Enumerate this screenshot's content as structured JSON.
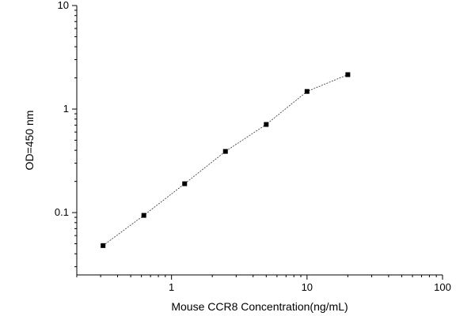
{
  "chart_data": {
    "type": "scatter",
    "xlabel": "Mouse CCR8 Concentration(ng/mL)",
    "ylabel": "OD=450 nm",
    "xscale": "log",
    "yscale": "log",
    "xlim": [
      0.2,
      100
    ],
    "ylim": [
      0.025,
      10
    ],
    "x_ticks": [
      1,
      10,
      100
    ],
    "x_tick_labels": [
      "1",
      "10",
      "100"
    ],
    "y_ticks": [
      0.1,
      1,
      10
    ],
    "y_tick_labels": [
      "0.1",
      "1",
      "10"
    ],
    "grid": false,
    "series": [
      {
        "x": [
          0.3125,
          0.625,
          1.25,
          2.5,
          5,
          10,
          20
        ],
        "y": [
          0.048,
          0.094,
          0.19,
          0.39,
          0.71,
          1.48,
          2.15
        ]
      }
    ]
  }
}
